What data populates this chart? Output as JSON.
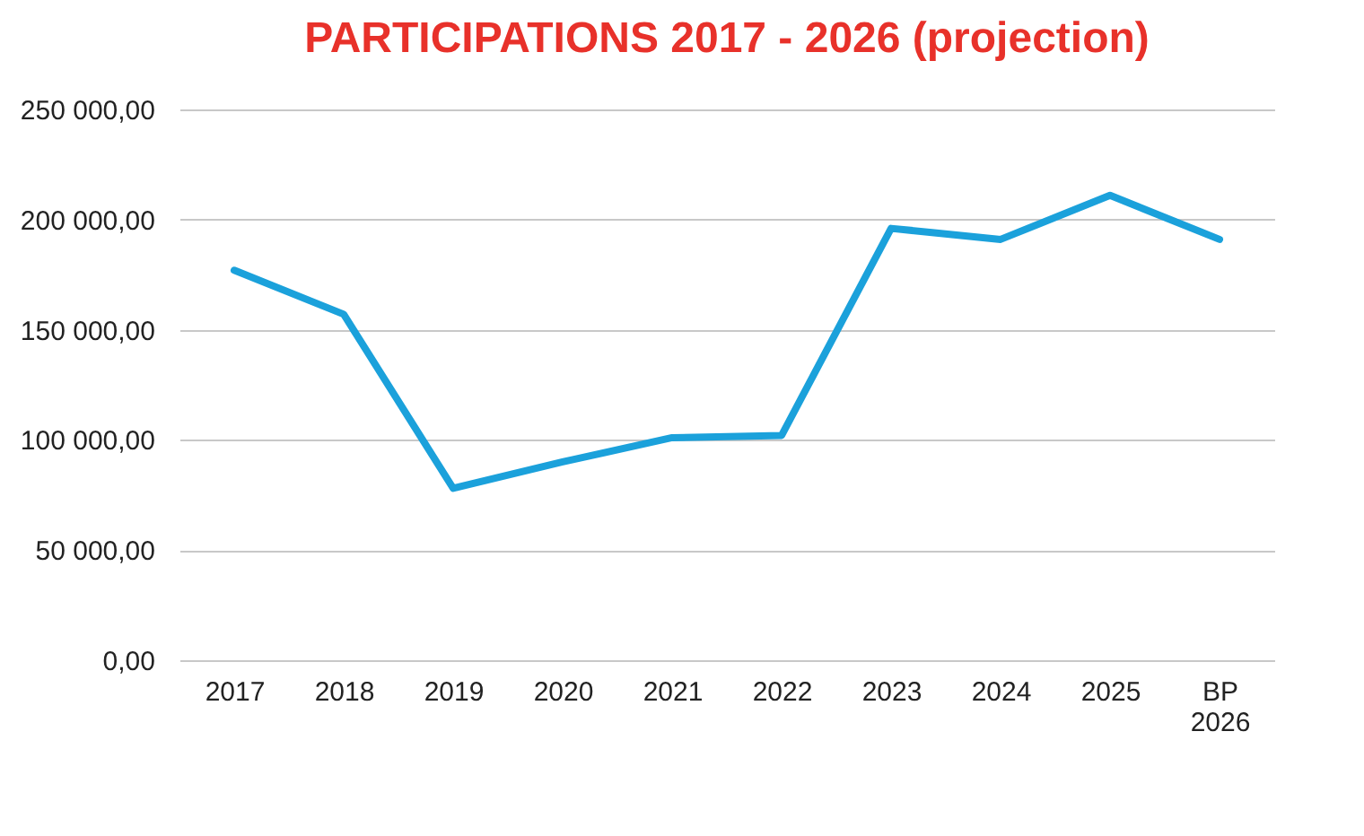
{
  "chart_data": {
    "type": "line",
    "title": "PARTICIPATIONS 2017 - 2026 (projection)",
    "categories": [
      "2017",
      "2018",
      "2019",
      "2020",
      "2021",
      "2022",
      "2023",
      "2024",
      "2025",
      "BP 2026"
    ],
    "series": [
      {
        "color": "#1ba1db",
        "values": [
          177000,
          157000,
          78000,
          90000,
          101000,
          102000,
          196000,
          191000,
          211000,
          191000
        ]
      }
    ],
    "ylim": [
      0,
      250000
    ],
    "yticks": [
      {
        "value": 0,
        "label": "0,00"
      },
      {
        "value": 50000,
        "label": "50 000,00"
      },
      {
        "value": 100000,
        "label": "100 000,00"
      },
      {
        "value": 150000,
        "label": "150 000,00"
      },
      {
        "value": 200000,
        "label": "200 000,00"
      },
      {
        "value": 250000,
        "label": "250 000,00"
      }
    ],
    "grid": "y",
    "marker": "none",
    "line_style": "solid"
  }
}
